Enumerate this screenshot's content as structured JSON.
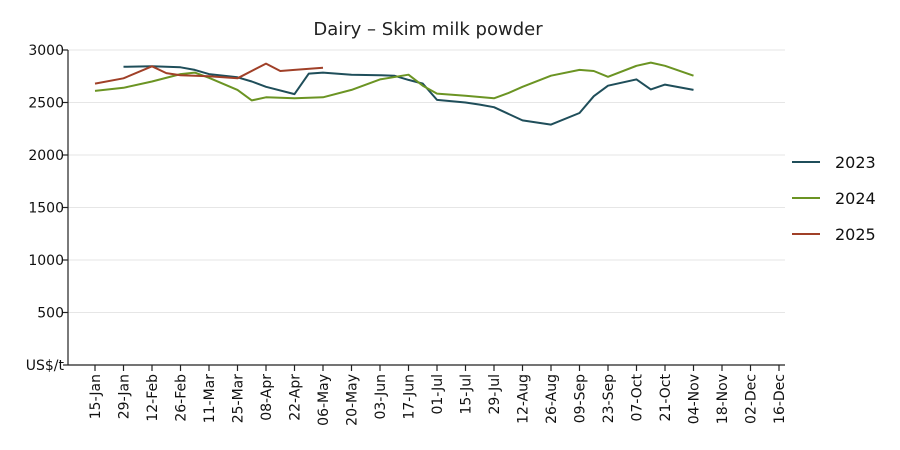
{
  "chart_data": {
    "type": "line",
    "title": "Dairy – Skim milk powder",
    "xlabel": "",
    "ylabel": "US$/t",
    "ylim": [
      0,
      3000
    ],
    "yticks": [
      0,
      500,
      1000,
      1500,
      2000,
      2500,
      3000
    ],
    "ytick_labels": [
      "US$/t",
      "500",
      "1000",
      "1500",
      "2000",
      "2500",
      "3000"
    ],
    "grid": true,
    "legend_position": "right",
    "categories": [
      "15-Jan",
      "29-Jan",
      "12-Feb",
      "26-Feb",
      "11-Mar",
      "25-Mar",
      "08-Apr",
      "22-Apr",
      "06-May",
      "20-May",
      "03-Jun",
      "17-Jun",
      "01-Jul",
      "15-Jul",
      "29-Jul",
      "12-Aug",
      "26-Aug",
      "09-Sep",
      "23-Sep",
      "07-Oct",
      "21-Oct",
      "04-Nov",
      "18-Nov",
      "02-Dec",
      "16-Dec"
    ],
    "series": [
      {
        "name": "2023",
        "color": "#1f4e5a",
        "points": [
          [
            1,
            2840
          ],
          [
            2,
            2845
          ],
          [
            3,
            2835
          ],
          [
            3.5,
            2810
          ],
          [
            4,
            2770
          ],
          [
            5,
            2740
          ],
          [
            5.5,
            2700
          ],
          [
            6,
            2650
          ],
          [
            7,
            2580
          ],
          [
            7.5,
            2775
          ],
          [
            8,
            2785
          ],
          [
            9,
            2765
          ],
          [
            10,
            2760
          ],
          [
            10.5,
            2755
          ],
          [
            11,
            2715
          ],
          [
            11.5,
            2680
          ],
          [
            12,
            2525
          ],
          [
            13,
            2500
          ],
          [
            13.5,
            2480
          ],
          [
            14,
            2455
          ],
          [
            15,
            2330
          ],
          [
            16,
            2290
          ],
          [
            17,
            2400
          ],
          [
            17.5,
            2560
          ],
          [
            18,
            2660
          ],
          [
            19,
            2720
          ],
          [
            19.5,
            2625
          ],
          [
            20,
            2670
          ],
          [
            21,
            2620
          ]
        ]
      },
      {
        "name": "2024",
        "color": "#6b9423",
        "points": [
          [
            0,
            2610
          ],
          [
            1,
            2640
          ],
          [
            2,
            2700
          ],
          [
            3,
            2770
          ],
          [
            3.5,
            2785
          ],
          [
            4,
            2735
          ],
          [
            5,
            2620
          ],
          [
            5.5,
            2520
          ],
          [
            6,
            2550
          ],
          [
            7,
            2540
          ],
          [
            7.5,
            2545
          ],
          [
            8,
            2550
          ],
          [
            9,
            2620
          ],
          [
            10,
            2720
          ],
          [
            11,
            2765
          ],
          [
            11.5,
            2660
          ],
          [
            12,
            2585
          ],
          [
            13,
            2565
          ],
          [
            14,
            2540
          ],
          [
            14.5,
            2590
          ],
          [
            15,
            2650
          ],
          [
            16,
            2755
          ],
          [
            17,
            2810
          ],
          [
            17.5,
            2800
          ],
          [
            18,
            2745
          ],
          [
            19,
            2850
          ],
          [
            19.5,
            2880
          ],
          [
            20,
            2850
          ],
          [
            21,
            2755
          ]
        ]
      },
      {
        "name": "2025",
        "color": "#a04028",
        "points": [
          [
            0,
            2680
          ],
          [
            1,
            2730
          ],
          [
            2,
            2845
          ],
          [
            2.5,
            2780
          ],
          [
            3,
            2760
          ],
          [
            4,
            2750
          ],
          [
            5,
            2730
          ],
          [
            6,
            2870
          ],
          [
            6.5,
            2800
          ],
          [
            7,
            2810
          ],
          [
            8,
            2830
          ]
        ]
      }
    ]
  }
}
